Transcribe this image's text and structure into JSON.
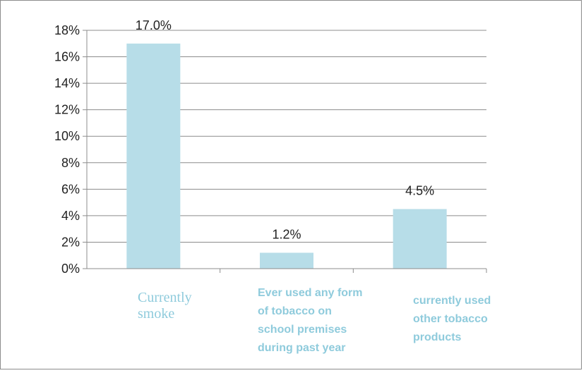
{
  "chart_data": {
    "type": "bar",
    "categories": [
      "Currently smoke",
      "Ever used any form of tobacco on school premises during past year",
      "currently used other tobacco products"
    ],
    "series": [
      {
        "values": [
          17.0,
          1.2,
          4.5
        ]
      }
    ],
    "data_labels": [
      "17.0%",
      "1.2%",
      "4.5%"
    ],
    "ylim": [
      0,
      18
    ],
    "yticks": [
      "0%",
      "2%",
      "4%",
      "6%",
      "8%",
      "10%",
      "12%",
      "14%",
      "16%",
      "18%"
    ],
    "ytick_values": [
      0,
      2,
      4,
      6,
      8,
      10,
      12,
      14,
      16,
      18
    ],
    "title": "",
    "xlabel": "",
    "ylabel": "",
    "grid": true,
    "legend": "none",
    "colors": {
      "bar": "#b7dde8",
      "category_text": "#8fcbdc",
      "grid": "#8c8c8c"
    }
  }
}
